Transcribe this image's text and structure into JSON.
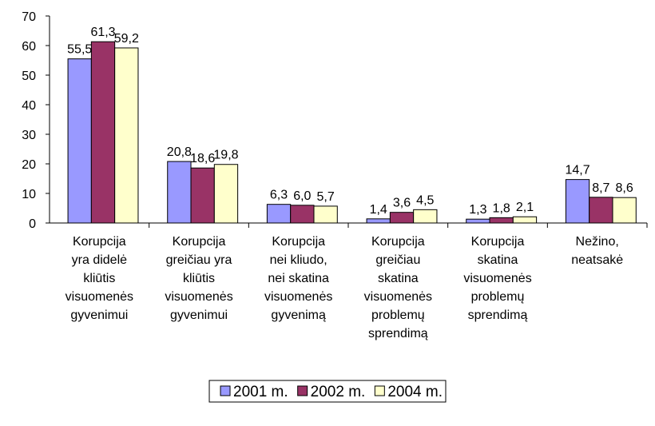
{
  "chart_data": {
    "type": "bar",
    "categories": [
      [
        "Korupcija",
        "yra didelė",
        "kliūtis",
        "visuomenės",
        "gyvenimui"
      ],
      [
        "Korupcija",
        "greičiau yra",
        "kliūtis",
        "visuomenės",
        "gyvenimui"
      ],
      [
        "Korupcija",
        "nei kliudo,",
        "nei skatina",
        "visuomenės",
        "gyvenimą"
      ],
      [
        "Korupcija",
        "greičiau",
        "skatina",
        "visuomenės",
        "problemų",
        "sprendimą"
      ],
      [
        "Korupcija",
        "skatina",
        "visuomenės",
        "problemų",
        "sprendimą"
      ],
      [
        "Nežino,",
        "neatsakė"
      ]
    ],
    "series": [
      {
        "name": "2001 m.",
        "color": "#9999ff",
        "values": [
          55.5,
          20.8,
          6.3,
          1.4,
          1.3,
          14.7
        ],
        "value_labels": [
          "55,5",
          "20,8",
          "6,3",
          "1,4",
          "1,3",
          "14,7"
        ]
      },
      {
        "name": "2002 m.",
        "color": "#993366",
        "values": [
          61.3,
          18.6,
          6.0,
          3.6,
          1.8,
          8.7
        ],
        "value_labels": [
          "61,3",
          "18,6",
          "6,0",
          "3,6",
          "1,8",
          "8,7"
        ]
      },
      {
        "name": "2004 m.",
        "color": "#ffffcc",
        "values": [
          59.2,
          19.8,
          5.7,
          4.5,
          2.1,
          8.6
        ],
        "value_labels": [
          "59,2",
          "19,8",
          "5,7",
          "4,5",
          "2,1",
          "8,6"
        ]
      }
    ],
    "ylim": [
      0,
      70
    ],
    "yticks": [
      0,
      10,
      20,
      30,
      40,
      50,
      60,
      70
    ],
    "grid": false,
    "legend": "bottom"
  }
}
